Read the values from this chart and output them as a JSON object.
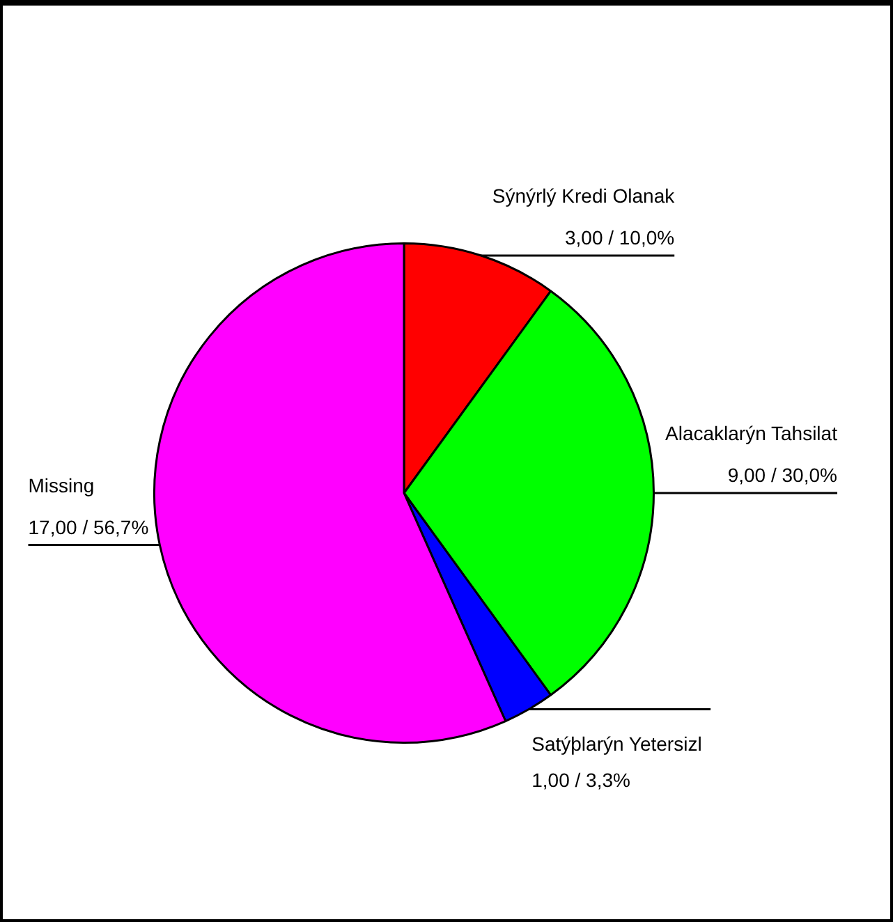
{
  "chart_data": {
    "type": "pie",
    "categories": [
      "Sýnýrlý Kredi Olanak",
      "Alacaklarýn Tahsilat",
      "Satýþlarýn Yetersizl",
      "Missing"
    ],
    "values": [
      3,
      9,
      1,
      17
    ],
    "colors": [
      "#ff0000",
      "#00ff00",
      "#0000ff",
      "#ff00ff"
    ],
    "value_labels": [
      "3,00 / 10,0%",
      "9,00 / 30,0%",
      "1,00 / 3,3%",
      "17,00 / 56,7%"
    ],
    "legend": false
  }
}
